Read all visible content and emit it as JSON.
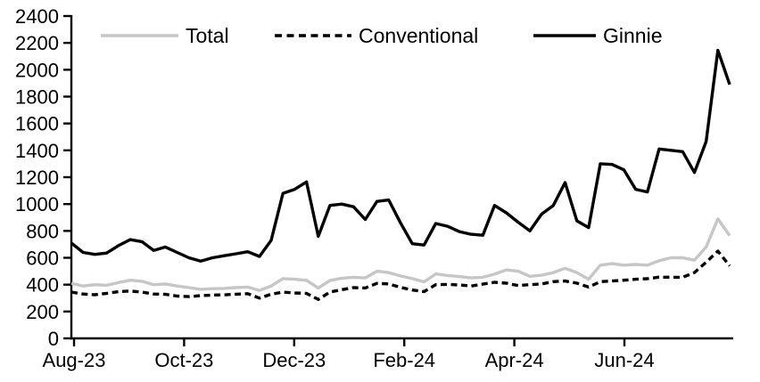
{
  "chart_data": {
    "type": "line",
    "title": "",
    "xlabel": "",
    "ylabel": "",
    "grid": false,
    "legend_position": "top",
    "y_axis": {
      "min": 0,
      "max": 2400,
      "step": 200,
      "tick_labels": [
        "0",
        "200",
        "400",
        "600",
        "800",
        "1000",
        "1200",
        "1400",
        "1600",
        "1800",
        "2000",
        "2200",
        "2400"
      ]
    },
    "x_axis": {
      "tick_labels": [
        "Aug-23",
        "Oct-23",
        "Dec-23",
        "Feb-24",
        "Apr-24",
        "Jun-24"
      ]
    },
    "colors": {
      "total": "#c6c6c6",
      "conventional": "#000000",
      "ginnie": "#000000",
      "axis": "#000000"
    },
    "series": [
      {
        "name": "Total",
        "color": "#c6c6c6",
        "dash": "solid",
        "values": [
          410,
          390,
          400,
          395,
          415,
          433,
          425,
          400,
          405,
          390,
          378,
          365,
          370,
          372,
          378,
          382,
          357,
          390,
          445,
          440,
          432,
          375,
          430,
          448,
          455,
          450,
          500,
          490,
          465,
          445,
          420,
          480,
          468,
          460,
          450,
          455,
          478,
          510,
          500,
          462,
          470,
          490,
          522,
          489,
          440,
          545,
          556,
          545,
          550,
          545,
          578,
          600,
          600,
          582,
          680,
          890,
          765
        ]
      },
      {
        "name": "Conventional",
        "color": "#000000",
        "dash": "dashed",
        "values": [
          345,
          330,
          325,
          335,
          348,
          352,
          345,
          330,
          328,
          315,
          311,
          318,
          322,
          324,
          329,
          333,
          300,
          329,
          344,
          338,
          335,
          290,
          345,
          362,
          378,
          375,
          410,
          405,
          380,
          360,
          348,
          400,
          402,
          398,
          390,
          404,
          418,
          411,
          393,
          400,
          405,
          422,
          427,
          411,
          382,
          422,
          427,
          433,
          440,
          444,
          456,
          455,
          455,
          490,
          567,
          650,
          540
        ]
      },
      {
        "name": "Ginnie",
        "color": "#000000",
        "dash": "solid",
        "values": [
          710,
          640,
          625,
          635,
          690,
          735,
          720,
          655,
          680,
          640,
          600,
          575,
          600,
          615,
          630,
          645,
          610,
          730,
          1080,
          1110,
          1165,
          760,
          990,
          1000,
          980,
          885,
          1020,
          1030,
          860,
          705,
          695,
          855,
          835,
          795,
          775,
          768,
          990,
          935,
          865,
          800,
          925,
          990,
          1160,
          875,
          825,
          1300,
          1295,
          1255,
          1110,
          1090,
          1410,
          1400,
          1390,
          1235,
          1465,
          2145,
          1890
        ]
      }
    ],
    "legend": [
      {
        "label": "Total"
      },
      {
        "label": "Conventional"
      },
      {
        "label": "Ginnie"
      }
    ]
  }
}
